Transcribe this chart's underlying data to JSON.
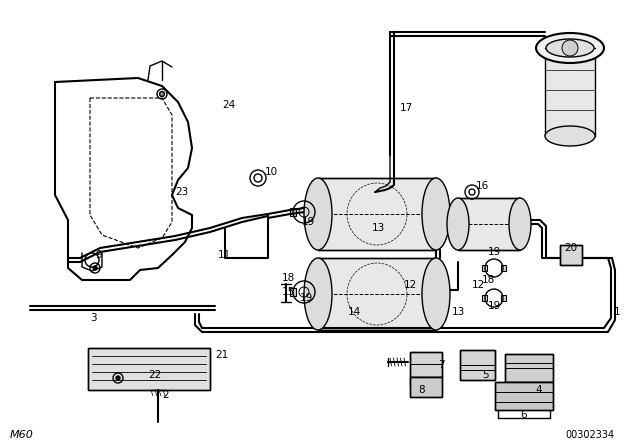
{
  "bg_color": "#ffffff",
  "line_color": "#000000",
  "fig_width": 6.4,
  "fig_height": 4.48,
  "dpi": 100,
  "bottom_left_text": "M60",
  "bottom_right_text": "00302334"
}
